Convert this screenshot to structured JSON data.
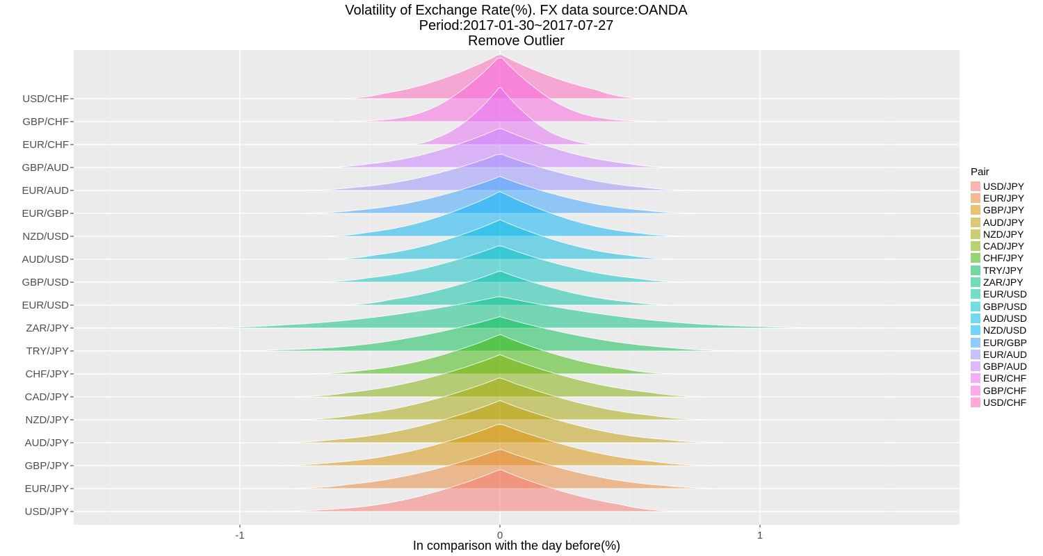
{
  "title_lines": [
    "Volatility of Exchange Rate(%). FX data source:OANDA",
    "Period:2017-01-30~2017-07-27",
    "Remove Outlier"
  ],
  "chart_data": {
    "type": "area",
    "subtype": "ridgeline-density",
    "xlabel": "In comparison with the day before(%)",
    "ylabel": "",
    "xlim": [
      -1.7,
      1.7
    ],
    "x_ticks": [
      -1,
      0,
      1
    ],
    "x_tick_labels": [
      "-1",
      "0",
      "1"
    ],
    "grid": true,
    "legend_title": "Pair",
    "legend_position": "right",
    "categories": [
      "USD/JPY",
      "EUR/JPY",
      "GBP/JPY",
      "AUD/JPY",
      "NZD/JPY",
      "CAD/JPY",
      "CHF/JPY",
      "TRY/JPY",
      "ZAR/JPY",
      "EUR/USD",
      "GBP/USD",
      "AUD/USD",
      "NZD/USD",
      "EUR/GBP",
      "EUR/AUD",
      "GBP/AUD",
      "EUR/CHF",
      "GBP/CHF",
      "USD/CHF"
    ],
    "series": [
      {
        "name": "USD/JPY",
        "color": "#F8766D",
        "min": -0.92,
        "max": 0.71,
        "peak": 0.0,
        "width": 0.28,
        "height": 1.6
      },
      {
        "name": "EUR/JPY",
        "color": "#EA8331",
        "min": -0.85,
        "max": 0.9,
        "peak": 0.0,
        "width": 0.3,
        "height": 1.5
      },
      {
        "name": "GBP/JPY",
        "color": "#D89000",
        "min": -0.92,
        "max": 0.86,
        "peak": 0.0,
        "width": 0.3,
        "height": 1.6
      },
      {
        "name": "AUD/JPY",
        "color": "#C09B00",
        "min": -0.91,
        "max": 0.91,
        "peak": 0.0,
        "width": 0.3,
        "height": 1.6
      },
      {
        "name": "NZD/JPY",
        "color": "#A3A500",
        "min": -0.8,
        "max": 0.83,
        "peak": 0.0,
        "width": 0.3,
        "height": 1.6
      },
      {
        "name": "CAD/JPY",
        "color": "#7CAE00",
        "min": -0.82,
        "max": 0.82,
        "peak": 0.0,
        "width": 0.3,
        "height": 1.6
      },
      {
        "name": "CHF/JPY",
        "color": "#39B600",
        "min": -0.76,
        "max": 0.7,
        "peak": 0.0,
        "width": 0.26,
        "height": 1.5
      },
      {
        "name": "TRY/JPY",
        "color": "#00BB4E",
        "min": -1.16,
        "max": 0.97,
        "peak": 0.0,
        "width": 0.33,
        "height": 1.3
      },
      {
        "name": "ZAR/JPY",
        "color": "#00BF7D",
        "min": -1.25,
        "max": 1.42,
        "peak": 0.0,
        "width": 0.42,
        "height": 1.2
      },
      {
        "name": "EUR/USD",
        "color": "#00C1A3",
        "min": -0.62,
        "max": 0.69,
        "peak": 0.0,
        "width": 0.25,
        "height": 1.3
      },
      {
        "name": "GBP/USD",
        "color": "#00BFC4",
        "min": -0.73,
        "max": 0.75,
        "peak": 0.0,
        "width": 0.27,
        "height": 1.4
      },
      {
        "name": "AUD/USD",
        "color": "#00BAE0",
        "min": -0.68,
        "max": 0.71,
        "peak": 0.0,
        "width": 0.25,
        "height": 1.5
      },
      {
        "name": "NZD/USD",
        "color": "#00B0F6",
        "min": -0.72,
        "max": 0.75,
        "peak": 0.0,
        "width": 0.25,
        "height": 1.7
      },
      {
        "name": "EUR/GBP",
        "color": "#35A2FF",
        "min": -0.8,
        "max": 0.8,
        "peak": 0.0,
        "width": 0.27,
        "height": 1.4
      },
      {
        "name": "EUR/AUD",
        "color": "#9590FF",
        "min": -0.8,
        "max": 0.78,
        "peak": 0.0,
        "width": 0.27,
        "height": 1.4
      },
      {
        "name": "GBP/AUD",
        "color": "#C77CFF",
        "min": -0.72,
        "max": 0.7,
        "peak": 0.0,
        "width": 0.25,
        "height": 1.5
      },
      {
        "name": "EUR/CHF",
        "color": "#E76BF3",
        "min": -0.36,
        "max": 0.4,
        "peak": 0.0,
        "width": 0.13,
        "height": 2.2
      },
      {
        "name": "GBP/CHF",
        "color": "#FA62DB",
        "min": -0.8,
        "max": 0.78,
        "peak": 0.0,
        "width": 0.17,
        "height": 2.5
      },
      {
        "name": "USD/CHF",
        "color": "#FF62BC",
        "min": -0.62,
        "max": 0.55,
        "peak": 0.0,
        "width": 0.24,
        "height": 1.7
      }
    ]
  }
}
